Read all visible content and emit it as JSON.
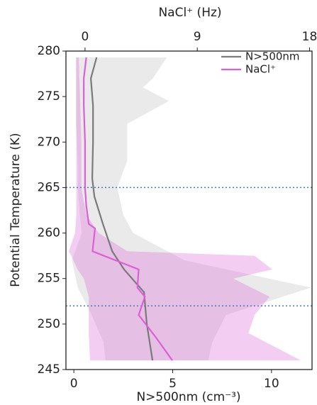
{
  "chart_data": {
    "type": "line",
    "x_label": "N>500nm (cm⁻³)",
    "x2_label": "NaCl⁺ (Hz)",
    "y_label": "Potential Temperature (K)",
    "xlim": [
      -0.4,
      12.05
    ],
    "xticks": [
      0,
      5,
      10
    ],
    "x2lim": [
      -1.53,
      18.2
    ],
    "x2ticks": [
      0,
      9,
      18
    ],
    "ylim": [
      245,
      280
    ],
    "yticks": [
      245,
      250,
      255,
      260,
      265,
      270,
      275,
      280
    ],
    "hlines": [
      265,
      252
    ],
    "hline_color": "#3a7fc1",
    "legend": "upper right",
    "bands": [
      {
        "color": "#dcdcdc",
        "alpha": 0.6,
        "axis": "x",
        "y": [
          279.3,
          277,
          276,
          274.5,
          272,
          268,
          265,
          262,
          260,
          257,
          254,
          251,
          248,
          246
        ],
        "lower": [
          0.1,
          0.1,
          0.1,
          0.1,
          0.1,
          0.2,
          0.2,
          0.3,
          0.4,
          -0.1,
          0.2,
          0.9,
          1.5,
          1.6
        ],
        "upper": [
          4.7,
          4.0,
          3.5,
          4.8,
          2.7,
          2.7,
          2.2,
          2.5,
          3.0,
          5.6,
          12.0,
          7.7,
          7.0,
          6.8
        ]
      },
      {
        "color": "#e070dc",
        "alpha": 0.35,
        "axis": "x2",
        "y": [
          279.3,
          270,
          265,
          262,
          260,
          258,
          257.5,
          256,
          255,
          253,
          251,
          249,
          246
        ],
        "lower": [
          -0.7,
          -0.7,
          -0.7,
          -0.7,
          -0.8,
          -1.3,
          -1.1,
          -0.6,
          -0.1,
          0.3,
          0.3,
          0.3,
          0.4
        ],
        "upper": [
          -0.5,
          -0.3,
          -0.3,
          0.1,
          1.1,
          3.4,
          13.6,
          15.0,
          11.9,
          14.8,
          13.6,
          13.1,
          17.3
        ]
      }
    ],
    "series": [
      {
        "name": "N>500nm",
        "color": "#7a7a7a",
        "axis": "x",
        "y": [
          279.3,
          277,
          274,
          270,
          266,
          264,
          261,
          258,
          256,
          253.5,
          250,
          246
        ],
        "values": [
          1.15,
          0.86,
          0.97,
          0.97,
          0.93,
          1.04,
          1.47,
          1.94,
          2.54,
          3.55,
          3.69,
          3.98
        ]
      },
      {
        "name": "NaCl⁺",
        "color": "#dd5fd6",
        "axis": "x2",
        "y": [
          279.3,
          277,
          274,
          270,
          265,
          263,
          261,
          260.5,
          258,
          256,
          254,
          253,
          251,
          248.5,
          246
        ],
        "values": [
          0.1,
          -0.1,
          -0.1,
          0,
          0,
          0.1,
          0.3,
          0.8,
          0.6,
          4.3,
          4.2,
          4.8,
          4.3,
          5.7,
          7.0
        ]
      }
    ]
  }
}
